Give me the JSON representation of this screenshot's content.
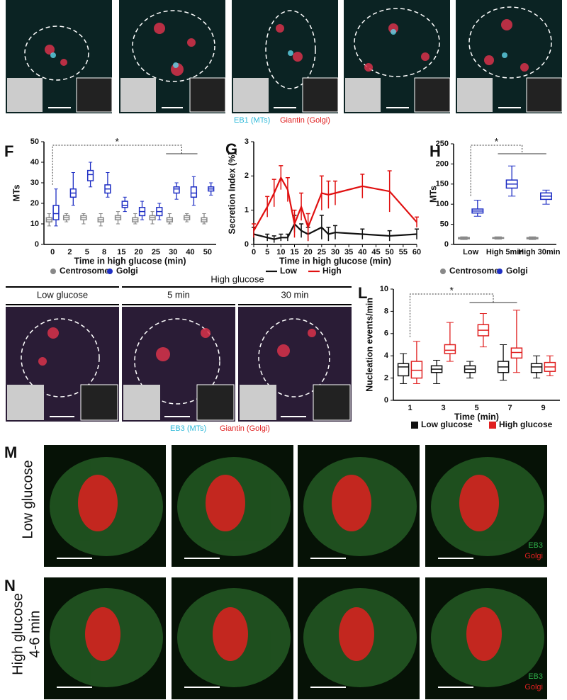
{
  "top_row": {
    "labels": [
      "EB1 (MTs)",
      "Giantin (Golgi)"
    ]
  },
  "middle_row": {
    "headings": [
      "Low glucose",
      "High glucose",
      "5 min",
      "30 min"
    ],
    "labels": [
      "EB3 (MTs)",
      "Giantin (Golgi)"
    ]
  },
  "bottom_rows": {
    "row_labels": [
      "Low glucose",
      "High glucose",
      "4-6 min"
    ],
    "channel_labels": [
      "EB3",
      "Golgi"
    ]
  },
  "panel_letters": [
    "F",
    "G",
    "H",
    "L",
    "M",
    "N"
  ],
  "chart_data": [
    {
      "type": "box",
      "ylabel": "MTs",
      "xlabel": "Time in high glucose (min)",
      "categories": [
        "0",
        "2",
        "5",
        "8",
        "15",
        "20",
        "25",
        "30",
        "40",
        "50"
      ],
      "ylim": [
        0,
        50
      ],
      "yticks": [
        0,
        10,
        20,
        30,
        40,
        50
      ],
      "annotation": "*",
      "series": [
        {
          "name": "Centrosome",
          "color": "#888888",
          "values": [
            [
              9,
              11,
              12,
              13,
              15
            ],
            [
              11,
              12,
              13,
              14,
              15
            ],
            [
              10,
              12,
              13,
              14,
              15
            ],
            [
              9,
              11,
              12,
              13,
              15
            ],
            [
              10,
              12,
              13,
              14,
              16
            ],
            [
              10,
              11,
              12,
              13,
              15
            ],
            [
              10,
              12,
              13,
              14,
              16
            ],
            [
              10,
              11,
              12,
              13,
              15
            ],
            [
              11,
              12,
              13,
              14,
              15
            ],
            [
              10,
              11,
              12,
              13,
              15
            ]
          ]
        },
        {
          "name": "Golgi",
          "color": "#1f2fc4",
          "values": [
            [
              9,
              12,
              15,
              19,
              27
            ],
            [
              19,
              23,
              25,
              27,
              35
            ],
            [
              28,
              31,
              34,
              36,
              40
            ],
            [
              23,
              25,
              27,
              29,
              35
            ],
            [
              16,
              18,
              19,
              21,
              23
            ],
            [
              12,
              14,
              16,
              18,
              21
            ],
            [
              12,
              14,
              16,
              18,
              20
            ],
            [
              22,
              25,
              27,
              28,
              30
            ],
            [
              19,
              23,
              25,
              28,
              33
            ],
            [
              24,
              26,
              27,
              28,
              30
            ]
          ]
        }
      ]
    },
    {
      "type": "line",
      "ylabel": "Secretion Index (%)",
      "xlabel": "Time in high glucose (min)",
      "x": [
        0,
        5,
        7.5,
        10,
        12.5,
        15,
        17.5,
        20,
        25,
        27.5,
        30,
        40,
        50,
        60
      ],
      "xlim": [
        0,
        60
      ],
      "xticks": [
        0,
        5,
        10,
        15,
        20,
        25,
        30,
        35,
        40,
        45,
        50,
        55,
        60
      ],
      "ylim": [
        0,
        3
      ],
      "yticks": [
        0,
        1,
        2,
        3
      ],
      "series": [
        {
          "name": "Low",
          "color": "#111111",
          "values": [
            0.3,
            0.2,
            0.15,
            0.2,
            0.2,
            0.6,
            0.4,
            0.3,
            0.5,
            0.3,
            0.35,
            0.3,
            0.25,
            0.3
          ],
          "errors": [
            0.2,
            0.1,
            0.1,
            0.1,
            0.1,
            0.25,
            0.2,
            0.2,
            0.35,
            0.2,
            0.2,
            0.15,
            0.15,
            0.15
          ]
        },
        {
          "name": "High",
          "color": "#e01010",
          "values": [
            0.4,
            1.1,
            1.5,
            1.95,
            1.6,
            0.6,
            1.1,
            0.5,
            1.5,
            1.45,
            1.5,
            1.7,
            1.55,
            0.65
          ],
          "errors": [
            0.2,
            0.3,
            0.4,
            0.35,
            0.35,
            0.4,
            0.4,
            0.4,
            0.5,
            0.4,
            0.35,
            0.35,
            0.6,
            0.15
          ]
        }
      ]
    },
    {
      "type": "box",
      "ylabel": "MTs",
      "categories": [
        "Low",
        "High 5min",
        "High 30min"
      ],
      "ylim": [
        0,
        250
      ],
      "yticks": [
        0,
        50,
        100,
        150,
        200,
        250
      ],
      "annotation": "*",
      "series": [
        {
          "name": "Centrosome",
          "color": "#888888",
          "values": [
            [
              12,
              14,
              16,
              17,
              19
            ],
            [
              13,
              15,
              16,
              17,
              19
            ],
            [
              12,
              14,
              16,
              17,
              19
            ]
          ]
        },
        {
          "name": "Golgi",
          "color": "#1f2fc4",
          "values": [
            [
              70,
              78,
              83,
              88,
              110
            ],
            [
              120,
              140,
              150,
              160,
              195
            ],
            [
              100,
              112,
              120,
              128,
              135
            ]
          ]
        }
      ]
    },
    {
      "type": "box",
      "ylabel": "Nucleation events/min",
      "xlabel": "Time (min)",
      "categories": [
        "1",
        "3",
        "5",
        "7",
        "9"
      ],
      "ylim": [
        0,
        10
      ],
      "yticks": [
        0,
        2,
        4,
        6,
        8,
        10
      ],
      "annotation": "*",
      "series": [
        {
          "name": "Low glucose",
          "color": "#111111",
          "values": [
            [
              1.5,
              2.2,
              3,
              3.3,
              4.2
            ],
            [
              1.5,
              2.5,
              2.8,
              3.1,
              3.6
            ],
            [
              2,
              2.5,
              2.8,
              3.1,
              3.5
            ],
            [
              1.8,
              2.5,
              3,
              3.5,
              5
            ],
            [
              2,
              2.5,
              3,
              3.3,
              4
            ]
          ]
        },
        {
          "name": "High glucose",
          "color": "#e02020",
          "values": [
            [
              1.5,
              2,
              2.7,
              3.5,
              5.3
            ],
            [
              3.5,
              4.2,
              4.5,
              5,
              7
            ],
            [
              4.8,
              5.8,
              6.3,
              6.8,
              7.8
            ],
            [
              2.5,
              3.8,
              4.3,
              4.7,
              8.1
            ],
            [
              2.2,
              2.6,
              3,
              3.4,
              4
            ]
          ]
        }
      ]
    }
  ]
}
